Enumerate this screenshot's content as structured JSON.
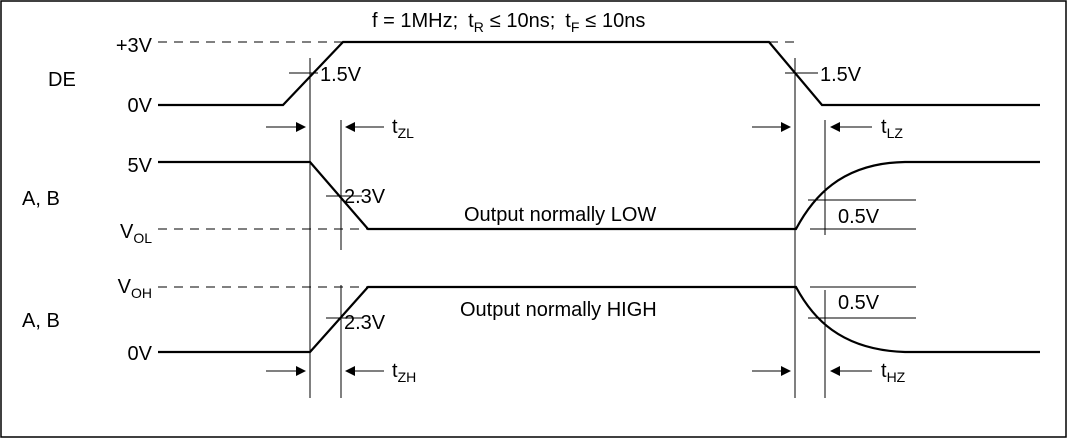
{
  "header": {
    "freq": "f = 1MHz;",
    "tr_main": "t",
    "tr_sub": "R",
    "tr_rel": "≤ 10ns;",
    "tf_main": "t",
    "tf_sub": "F",
    "tf_rel": "≤ 10ns"
  },
  "de": {
    "signal_label": "DE",
    "high_level": "+3V",
    "low_level": "0V",
    "rise_threshold": "1.5V",
    "fall_threshold": "1.5V"
  },
  "output_low": {
    "signal_label": "A, B",
    "high_level": "5V",
    "low_main": "V",
    "low_sub": "OL",
    "threshold": "2.3V",
    "caption": "Output normally LOW",
    "release_delta": "0.5V"
  },
  "output_high": {
    "signal_label": "A, B",
    "high_main": "V",
    "high_sub": "OH",
    "low_level": "0V",
    "threshold": "2.3V",
    "caption": "Output normally HIGH",
    "release_delta": "0.5V"
  },
  "timing": {
    "tzl_main": "t",
    "tzl_sub": "ZL",
    "tlz_main": "t",
    "tlz_sub": "LZ",
    "tzh_main": "t",
    "tzh_sub": "ZH",
    "thz_main": "t",
    "thz_sub": "HZ"
  }
}
